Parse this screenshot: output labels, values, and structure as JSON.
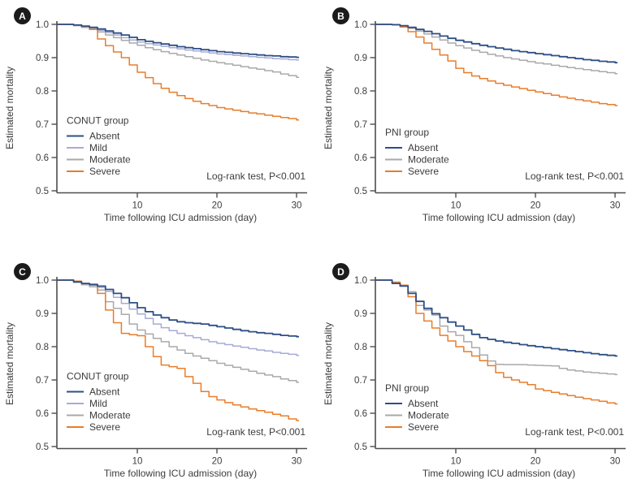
{
  "figure": {
    "ylabel": "Estimated mortality",
    "xlabel": "Time following ICU admission (day)",
    "annotation": "Log-rank test, P<0.001",
    "colors": {
      "absent": "#2d4f85",
      "mild": "#a6abd5",
      "moderate": "#a9a9a9",
      "severe": "#e87d2b",
      "axis": "#4d4d4d",
      "text": "#3c3c3c",
      "badge_bg": "#1b1b1b",
      "badge_text": "#ffffff"
    }
  },
  "chart_data": [
    {
      "panel": "A",
      "type": "line",
      "subtype": "kaplan-meier-step",
      "group_label": "CONUT group",
      "xlabel": "Time following ICU admission (day)",
      "ylabel": "Estimated mortality",
      "annotation": "Log-rank test, P<0.001",
      "xlim": [
        0,
        30
      ],
      "ylim": [
        0.5,
        1.0
      ],
      "xticks": [
        10,
        20,
        30
      ],
      "yticks": [
        0.5,
        0.6,
        0.7,
        0.8,
        0.9,
        1.0
      ],
      "grid": false,
      "legend_position": "lower-left",
      "days": [
        0,
        1,
        2,
        3,
        4,
        5,
        6,
        7,
        8,
        9,
        10,
        11,
        12,
        13,
        14,
        15,
        16,
        17,
        18,
        19,
        20,
        21,
        22,
        23,
        24,
        25,
        26,
        27,
        28,
        29,
        30
      ],
      "series": [
        {
          "name": "Absent",
          "color": "#2d4f85",
          "values": [
            1,
            1,
            0.998,
            0.995,
            0.991,
            0.986,
            0.98,
            0.974,
            0.968,
            0.961,
            0.954,
            0.949,
            0.945,
            0.941,
            0.937,
            0.933,
            0.93,
            0.927,
            0.924,
            0.921,
            0.918,
            0.916,
            0.914,
            0.912,
            0.91,
            0.908,
            0.906,
            0.905,
            0.903,
            0.902,
            0.901
          ]
        },
        {
          "name": "Mild",
          "color": "#a6abd5",
          "values": [
            1,
            1,
            0.997,
            0.993,
            0.988,
            0.982,
            0.975,
            0.968,
            0.96,
            0.953,
            0.947,
            0.942,
            0.938,
            0.934,
            0.93,
            0.926,
            0.923,
            0.92,
            0.917,
            0.914,
            0.911,
            0.909,
            0.907,
            0.905,
            0.903,
            0.901,
            0.899,
            0.897,
            0.896,
            0.894,
            0.893
          ]
        },
        {
          "name": "Moderate",
          "color": "#a9a9a9",
          "values": [
            1,
            1,
            0.996,
            0.991,
            0.985,
            0.977,
            0.968,
            0.96,
            0.952,
            0.944,
            0.937,
            0.93,
            0.924,
            0.918,
            0.913,
            0.908,
            0.903,
            0.898,
            0.893,
            0.889,
            0.885,
            0.881,
            0.877,
            0.873,
            0.869,
            0.865,
            0.861,
            0.857,
            0.851,
            0.846,
            0.841
          ]
        },
        {
          "name": "Severe",
          "color": "#e87d2b",
          "values": [
            1,
            1,
            0.998,
            0.993,
            0.985,
            0.956,
            0.936,
            0.917,
            0.9,
            0.878,
            0.856,
            0.84,
            0.822,
            0.808,
            0.796,
            0.786,
            0.777,
            0.769,
            0.762,
            0.756,
            0.75,
            0.746,
            0.742,
            0.738,
            0.734,
            0.731,
            0.727,
            0.724,
            0.72,
            0.717,
            0.713
          ]
        }
      ]
    },
    {
      "panel": "B",
      "type": "line",
      "subtype": "kaplan-meier-step",
      "group_label": "PNI group",
      "xlabel": "Time following ICU admission (day)",
      "ylabel": "Estimated mortality",
      "annotation": "Log-rank test, P<0.001",
      "xlim": [
        0,
        30
      ],
      "ylim": [
        0.5,
        1.0
      ],
      "xticks": [
        10,
        20,
        30
      ],
      "yticks": [
        0.5,
        0.6,
        0.7,
        0.8,
        0.9,
        1.0
      ],
      "grid": false,
      "legend_position": "lower-left",
      "days": [
        0,
        1,
        2,
        3,
        4,
        5,
        6,
        7,
        8,
        9,
        10,
        11,
        12,
        13,
        14,
        15,
        16,
        17,
        18,
        19,
        20,
        21,
        22,
        23,
        24,
        25,
        26,
        27,
        28,
        29,
        30
      ],
      "series": [
        {
          "name": "Absent",
          "color": "#2d4f85",
          "values": [
            1,
            1,
            0.999,
            0.996,
            0.991,
            0.985,
            0.979,
            0.972,
            0.965,
            0.958,
            0.952,
            0.947,
            0.942,
            0.937,
            0.933,
            0.929,
            0.925,
            0.921,
            0.918,
            0.915,
            0.912,
            0.909,
            0.906,
            0.903,
            0.9,
            0.897,
            0.894,
            0.892,
            0.889,
            0.887,
            0.885
          ]
        },
        {
          "name": "Moderate",
          "color": "#a9a9a9",
          "values": [
            1,
            1,
            0.998,
            0.994,
            0.988,
            0.98,
            0.971,
            0.962,
            0.953,
            0.944,
            0.936,
            0.929,
            0.922,
            0.916,
            0.91,
            0.905,
            0.9,
            0.896,
            0.892,
            0.888,
            0.884,
            0.881,
            0.877,
            0.874,
            0.87,
            0.867,
            0.864,
            0.861,
            0.858,
            0.855,
            0.852
          ]
        },
        {
          "name": "Severe",
          "color": "#e87d2b",
          "values": [
            1,
            1,
            0.998,
            0.992,
            0.978,
            0.962,
            0.944,
            0.925,
            0.908,
            0.89,
            0.868,
            0.855,
            0.845,
            0.837,
            0.83,
            0.823,
            0.817,
            0.812,
            0.807,
            0.802,
            0.797,
            0.792,
            0.787,
            0.782,
            0.778,
            0.774,
            0.77,
            0.766,
            0.762,
            0.759,
            0.756
          ]
        }
      ]
    },
    {
      "panel": "C",
      "type": "line",
      "subtype": "kaplan-meier-step",
      "group_label": "CONUT group",
      "xlabel": "Time following ICU admission (day)",
      "ylabel": "Estimated mortality",
      "annotation": "Log-rank test, P<0.001",
      "xlim": [
        0,
        30
      ],
      "ylim": [
        0.5,
        1.0
      ],
      "xticks": [
        10,
        20,
        30
      ],
      "yticks": [
        0.5,
        0.6,
        0.7,
        0.8,
        0.9,
        1.0
      ],
      "grid": false,
      "legend_position": "lower-left",
      "days": [
        0,
        1,
        2,
        3,
        4,
        5,
        6,
        7,
        8,
        9,
        10,
        11,
        12,
        13,
        14,
        15,
        16,
        17,
        18,
        19,
        20,
        21,
        22,
        23,
        24,
        25,
        26,
        27,
        28,
        29,
        30
      ],
      "series": [
        {
          "name": "Absent",
          "color": "#2d4f85",
          "values": [
            1,
            1,
            0.995,
            0.99,
            0.987,
            0.982,
            0.972,
            0.96,
            0.947,
            0.932,
            0.917,
            0.905,
            0.895,
            0.887,
            0.88,
            0.875,
            0.872,
            0.87,
            0.868,
            0.864,
            0.86,
            0.856,
            0.852,
            0.848,
            0.845,
            0.842,
            0.84,
            0.837,
            0.834,
            0.832,
            0.83
          ]
        },
        {
          "name": "Mild",
          "color": "#a6abd5",
          "values": [
            1,
            1,
            0.994,
            0.988,
            0.985,
            0.978,
            0.966,
            0.948,
            0.93,
            0.913,
            0.898,
            0.885,
            0.868,
            0.857,
            0.848,
            0.84,
            0.833,
            0.827,
            0.821,
            0.815,
            0.81,
            0.806,
            0.802,
            0.798,
            0.794,
            0.79,
            0.787,
            0.783,
            0.78,
            0.777,
            0.774
          ]
        },
        {
          "name": "Moderate",
          "color": "#a9a9a9",
          "values": [
            1,
            1,
            0.993,
            0.986,
            0.98,
            0.97,
            0.935,
            0.915,
            0.897,
            0.868,
            0.85,
            0.838,
            0.825,
            0.815,
            0.8,
            0.79,
            0.78,
            0.772,
            0.765,
            0.758,
            0.75,
            0.744,
            0.738,
            0.732,
            0.726,
            0.72,
            0.715,
            0.71,
            0.703,
            0.698,
            0.693
          ]
        },
        {
          "name": "Severe",
          "color": "#e87d2b",
          "values": [
            1,
            1,
            0.997,
            0.99,
            0.985,
            0.96,
            0.91,
            0.872,
            0.84,
            0.836,
            0.833,
            0.8,
            0.77,
            0.745,
            0.74,
            0.735,
            0.71,
            0.69,
            0.665,
            0.65,
            0.64,
            0.632,
            0.625,
            0.619,
            0.613,
            0.608,
            0.603,
            0.597,
            0.592,
            0.583,
            0.578
          ]
        }
      ]
    },
    {
      "panel": "D",
      "type": "line",
      "subtype": "kaplan-meier-step",
      "group_label": "PNI group",
      "xlabel": "Time following ICU admission (day)",
      "ylabel": "Estimated mortality",
      "annotation": "Log-rank test, P<0.001",
      "xlim": [
        0,
        30
      ],
      "ylim": [
        0.5,
        1.0
      ],
      "xticks": [
        10,
        20,
        30
      ],
      "yticks": [
        0.5,
        0.6,
        0.7,
        0.8,
        0.9,
        1.0
      ],
      "grid": false,
      "legend_position": "lower-left",
      "days": [
        0,
        1,
        2,
        3,
        4,
        5,
        6,
        7,
        8,
        9,
        10,
        11,
        12,
        13,
        14,
        15,
        16,
        17,
        18,
        19,
        20,
        21,
        22,
        23,
        24,
        25,
        26,
        27,
        28,
        29,
        30
      ],
      "series": [
        {
          "name": "Absent",
          "color": "#2d4f85",
          "values": [
            1,
            1,
            0.99,
            0.982,
            0.96,
            0.936,
            0.915,
            0.899,
            0.887,
            0.874,
            0.862,
            0.85,
            0.837,
            0.827,
            0.822,
            0.817,
            0.813,
            0.81,
            0.806,
            0.803,
            0.8,
            0.797,
            0.794,
            0.791,
            0.788,
            0.785,
            0.782,
            0.779,
            0.776,
            0.774,
            0.772
          ]
        },
        {
          "name": "Moderate",
          "color": "#a9a9a9",
          "values": [
            1,
            1,
            0.992,
            0.985,
            0.965,
            0.924,
            0.91,
            0.895,
            0.862,
            0.845,
            0.834,
            0.815,
            0.797,
            0.775,
            0.757,
            0.747,
            0.746,
            0.746,
            0.746,
            0.745,
            0.744,
            0.743,
            0.742,
            0.735,
            0.73,
            0.727,
            0.724,
            0.722,
            0.72,
            0.718,
            0.716
          ]
        },
        {
          "name": "Severe",
          "color": "#e87d2b",
          "values": [
            1,
            1,
            0.994,
            0.985,
            0.95,
            0.9,
            0.877,
            0.856,
            0.834,
            0.817,
            0.8,
            0.785,
            0.772,
            0.758,
            0.743,
            0.722,
            0.708,
            0.7,
            0.693,
            0.686,
            0.673,
            0.668,
            0.663,
            0.658,
            0.653,
            0.648,
            0.644,
            0.64,
            0.636,
            0.631,
            0.628
          ]
        }
      ]
    }
  ]
}
